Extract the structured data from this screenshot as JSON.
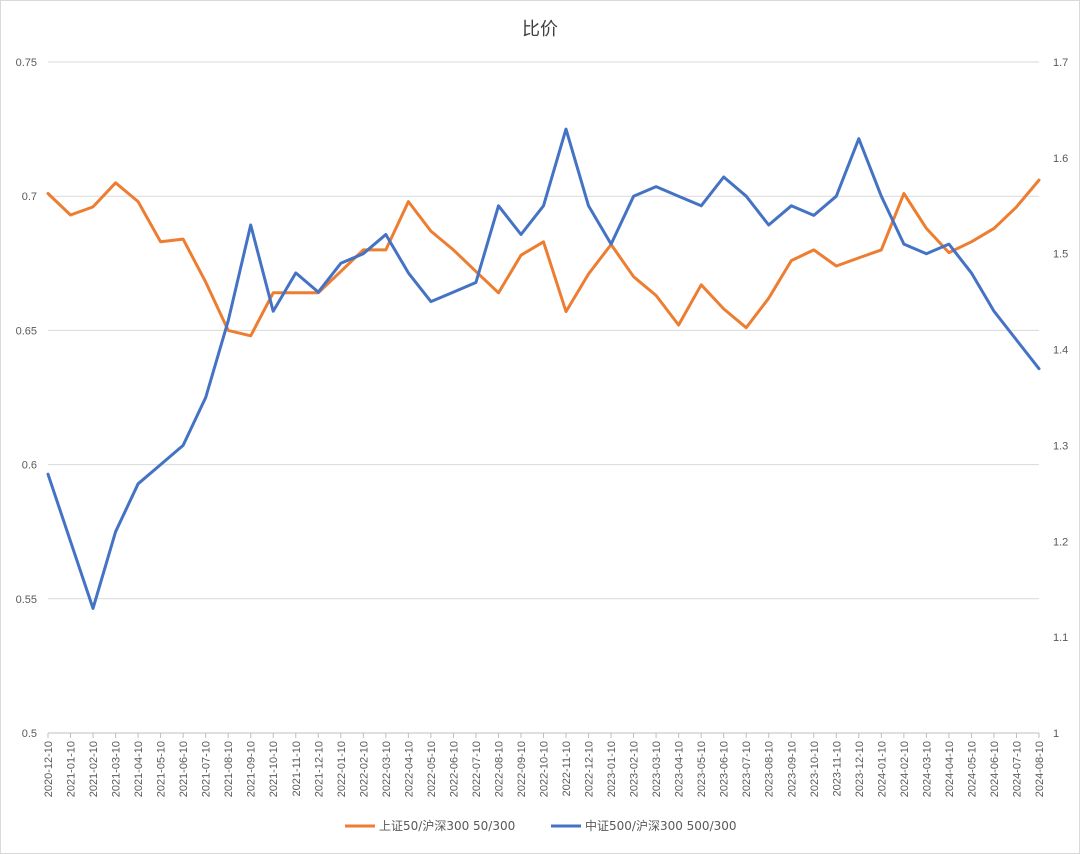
{
  "chart_data": {
    "type": "line",
    "title": "比价",
    "xlabel": "",
    "ylabel_left": "",
    "ylabel_right": "",
    "ylim_left": [
      0.5,
      0.75
    ],
    "ylim_right": [
      1,
      1.7
    ],
    "yticks_left": [
      "0.5",
      "0.55",
      "0.6",
      "0.65",
      "0.7",
      "0.75"
    ],
    "yticks_right": [
      "1",
      "1.1",
      "1.2",
      "1.3",
      "1.4",
      "1.5",
      "1.6",
      "1.7"
    ],
    "categories": [
      "2020-12-10",
      "2021-01-10",
      "2021-02-10",
      "2021-03-10",
      "2021-04-10",
      "2021-05-10",
      "2021-06-10",
      "2021-07-10",
      "2021-08-10",
      "2021-09-10",
      "2021-10-10",
      "2021-11-10",
      "2021-12-10",
      "2022-01-10",
      "2022-02-10",
      "2022-03-10",
      "2022-04-10",
      "2022-05-10",
      "2022-06-10",
      "2022-07-10",
      "2022-08-10",
      "2022-09-10",
      "2022-10-10",
      "2022-11-10",
      "2022-12-10",
      "2023-01-10",
      "2023-02-10",
      "2023-03-10",
      "2023-04-10",
      "2023-05-10",
      "2023-06-10",
      "2023-07-10",
      "2023-08-10",
      "2023-09-10",
      "2023-10-10",
      "2023-11-10",
      "2023-12-10",
      "2024-01-10",
      "2024-02-10",
      "2024-03-10",
      "2024-04-10",
      "2024-05-10",
      "2024-06-10",
      "2024-07-10",
      "2024-08-10"
    ],
    "grid": true,
    "legend_position": "bottom",
    "series": [
      {
        "name": "上证50/沪深300 50/300",
        "axis": "left",
        "color": "#ED7D31",
        "values": [
          0.701,
          0.693,
          0.696,
          0.705,
          0.698,
          0.683,
          0.684,
          0.668,
          0.65,
          0.648,
          0.664,
          0.664,
          0.664,
          0.672,
          0.68,
          0.68,
          0.698,
          0.687,
          0.68,
          0.672,
          0.664,
          0.678,
          0.683,
          0.657,
          0.671,
          0.682,
          0.67,
          0.663,
          0.652,
          0.667,
          0.658,
          0.651,
          0.662,
          0.676,
          0.68,
          0.674,
          0.677,
          0.68,
          0.701,
          0.688,
          0.679,
          0.683,
          0.688,
          0.696,
          0.706
        ]
      },
      {
        "name": "中证500/沪深300 500/300",
        "axis": "right",
        "color": "#4472C4",
        "values": [
          1.27,
          1.2,
          1.13,
          1.21,
          1.26,
          1.28,
          1.3,
          1.35,
          1.43,
          1.53,
          1.44,
          1.48,
          1.46,
          1.49,
          1.5,
          1.52,
          1.48,
          1.45,
          1.46,
          1.47,
          1.55,
          1.52,
          1.55,
          1.63,
          1.55,
          1.51,
          1.56,
          1.57,
          1.56,
          1.55,
          1.58,
          1.56,
          1.53,
          1.55,
          1.54,
          1.56,
          1.62,
          1.56,
          1.51,
          1.5,
          1.51,
          1.48,
          1.44,
          1.41,
          1.38
        ]
      }
    ]
  }
}
